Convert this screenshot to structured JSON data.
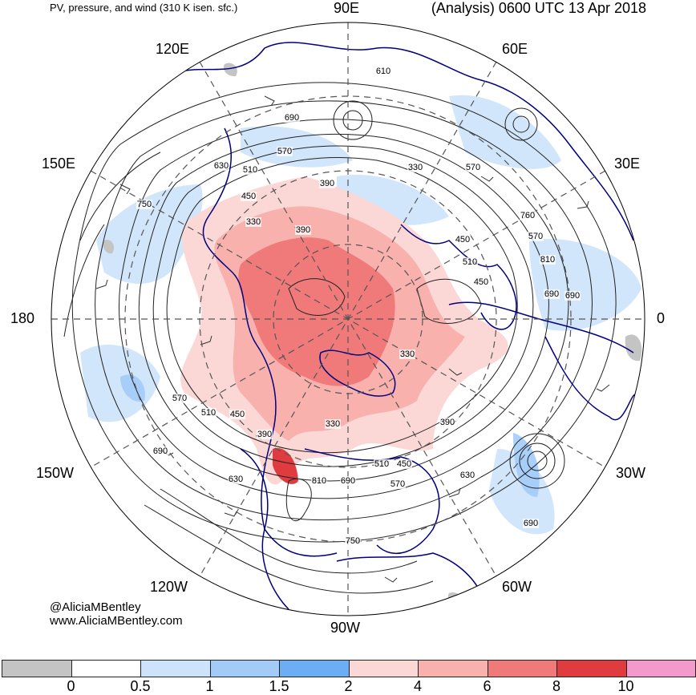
{
  "header": {
    "left": "PV, pressure, and wind (310 K isen. sfc.)",
    "right": "(Analysis) 0600 UTC 13 Apr 2018"
  },
  "longitude_labels": {
    "e90": "90E",
    "e60": "60E",
    "e120": "120E",
    "e30": "30E",
    "e150": "150E",
    "zero": "0",
    "l180": "180",
    "w30": "30W",
    "w150": "150W",
    "w60": "60W",
    "w120": "120W",
    "w90": "90W"
  },
  "contour_labels": [
    "610",
    "690",
    "570",
    "510",
    "630",
    "390",
    "330",
    "570",
    "750",
    "450",
    "330",
    "390",
    "760",
    "570",
    "450",
    "510",
    "810",
    "690",
    "450",
    "330",
    "690",
    "570",
    "510",
    "450",
    "390",
    "330",
    "690",
    "630",
    "810",
    "690",
    "510",
    "570",
    "450",
    "630",
    "390",
    "750",
    "690"
  ],
  "credit": {
    "line1": "@AliciaMBentley",
    "line2": "www.AliciaMBentley.com"
  },
  "colorbar": {
    "colors": [
      "#c4c4c4",
      "#ffffff",
      "#cde3fb",
      "#a2cbf8",
      "#6caef4",
      "#fbd8d6",
      "#f8b1ad",
      "#f07a7a",
      "#e03c40",
      "#f29acb"
    ],
    "labels": [
      "0",
      "0.5",
      "1",
      "1.5",
      "2",
      "4",
      "6",
      "8",
      "10"
    ]
  }
}
